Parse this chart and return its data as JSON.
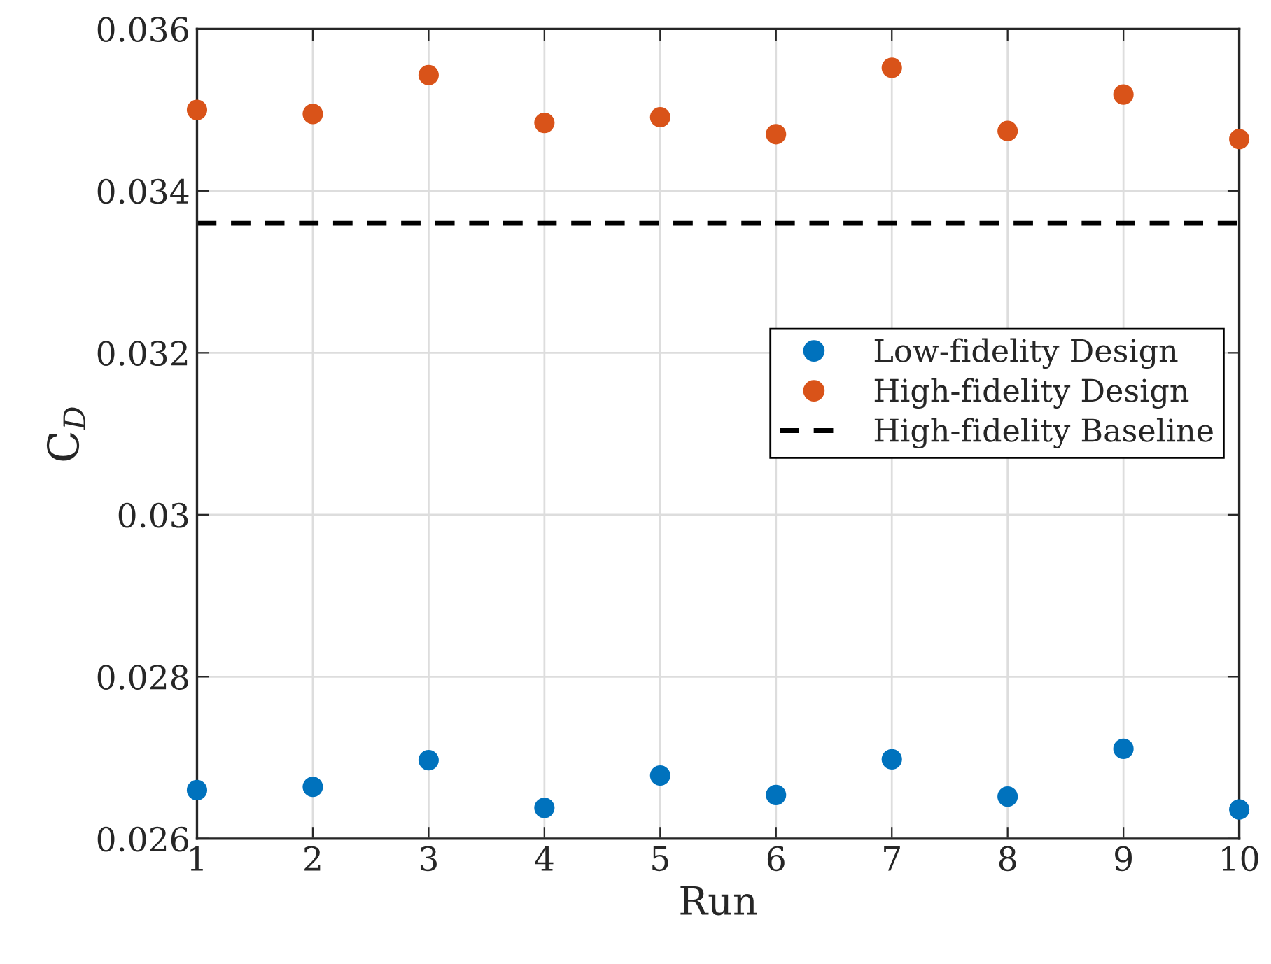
{
  "chart_data": {
    "type": "scatter",
    "xlabel": "Run",
    "ylabel": "C$_{D}$",
    "x": [
      1,
      2,
      3,
      4,
      5,
      6,
      7,
      8,
      9,
      10
    ],
    "series": [
      {
        "name": "Low-fidelity Design",
        "color": "#0072bd",
        "values": [
          0.0266,
          0.02664,
          0.02697,
          0.02638,
          0.02678,
          0.02654,
          0.02698,
          0.02652,
          0.02711,
          0.02636
        ]
      },
      {
        "name": "High-fidelity Design",
        "color": "#d95319",
        "values": [
          0.035,
          0.03495,
          0.03543,
          0.03484,
          0.03491,
          0.0347,
          0.03552,
          0.03474,
          0.03519,
          0.03464
        ]
      }
    ],
    "ref_lines": [
      {
        "axis": "y",
        "value": 0.0336,
        "label": "High-fidelity Baseline",
        "color": "#000000",
        "line_style": "dashed"
      }
    ],
    "xlim": [
      1,
      10
    ],
    "ylim": [
      0.026,
      0.036
    ],
    "xticks": [
      1,
      2,
      3,
      4,
      5,
      6,
      7,
      8,
      9,
      10
    ],
    "yticks": [
      0.026,
      0.028,
      0.03,
      0.032,
      0.034,
      0.036
    ],
    "grid": true,
    "legend": "right",
    "marker": "circle"
  }
}
